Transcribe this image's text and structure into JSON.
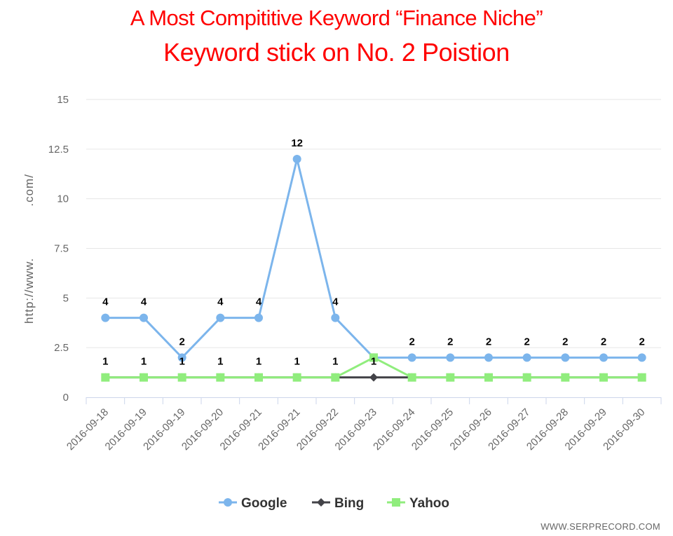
{
  "header": {
    "title_line1": "A Most Compititive Keyword “Finance Niche”",
    "title_line2": "Keyword stick on No. 2 Poistion"
  },
  "footer": {
    "watermark": "WWW.SERPRECORD.COM"
  },
  "colors": {
    "google": "#7cb5ec",
    "bing": "#434348",
    "yahoo": "#90ed7d",
    "grid": "#e6e6e6",
    "axis_text": "#666666",
    "title": "#ff0000"
  },
  "chart_data": {
    "type": "line",
    "title": "A Most Compititive Keyword “Finance Niche”",
    "subtitle": "Keyword stick on No. 2 Poistion",
    "ylabel": "http://www.",
    "ylabel_suffix": ".com/",
    "xlabel": "",
    "ylim": [
      0,
      15
    ],
    "yticks": [
      "0",
      "2.5",
      "5",
      "7.5",
      "10",
      "12.5",
      "15"
    ],
    "ytick_values": [
      0,
      2.5,
      5,
      7.5,
      10,
      12.5,
      15
    ],
    "grid": true,
    "legend_position": "bottom-center",
    "categories": [
      "2016-09-18",
      "2016-09-19",
      "2016-09-19",
      "2016-09-20",
      "2016-09-21",
      "2016-09-21",
      "2016-09-22",
      "2016-09-23",
      "2016-09-24",
      "2016-09-25",
      "2016-09-26",
      "2016-09-27",
      "2016-09-28",
      "2016-09-29",
      "2016-09-30"
    ],
    "series": [
      {
        "name": "Google",
        "marker": "circle",
        "values": [
          4,
          4,
          2,
          4,
          4,
          12,
          4,
          2,
          2,
          2,
          2,
          2,
          2,
          2,
          2
        ],
        "labels": [
          "4",
          "4",
          "2",
          "4",
          "4",
          "12",
          "4",
          "",
          "2",
          "2",
          "2",
          "2",
          "2",
          "2",
          "2"
        ]
      },
      {
        "name": "Bing",
        "marker": "diamond",
        "values": [
          1,
          1,
          1,
          1,
          1,
          1,
          1,
          1,
          1,
          1,
          1,
          1,
          1,
          1,
          1
        ],
        "labels": [
          "1",
          "1",
          "1",
          "1",
          "1",
          "1",
          "1",
          "1",
          "",
          "",
          "",
          "",
          "",
          "",
          ""
        ]
      },
      {
        "name": "Yahoo",
        "marker": "square",
        "values": [
          1,
          1,
          1,
          1,
          1,
          1,
          1,
          2,
          1,
          1,
          1,
          1,
          1,
          1,
          1
        ],
        "labels": [
          "",
          "",
          "",
          "",
          "",
          "",
          "",
          "",
          "",
          "",
          "",
          "",
          "",
          "",
          ""
        ]
      }
    ]
  }
}
